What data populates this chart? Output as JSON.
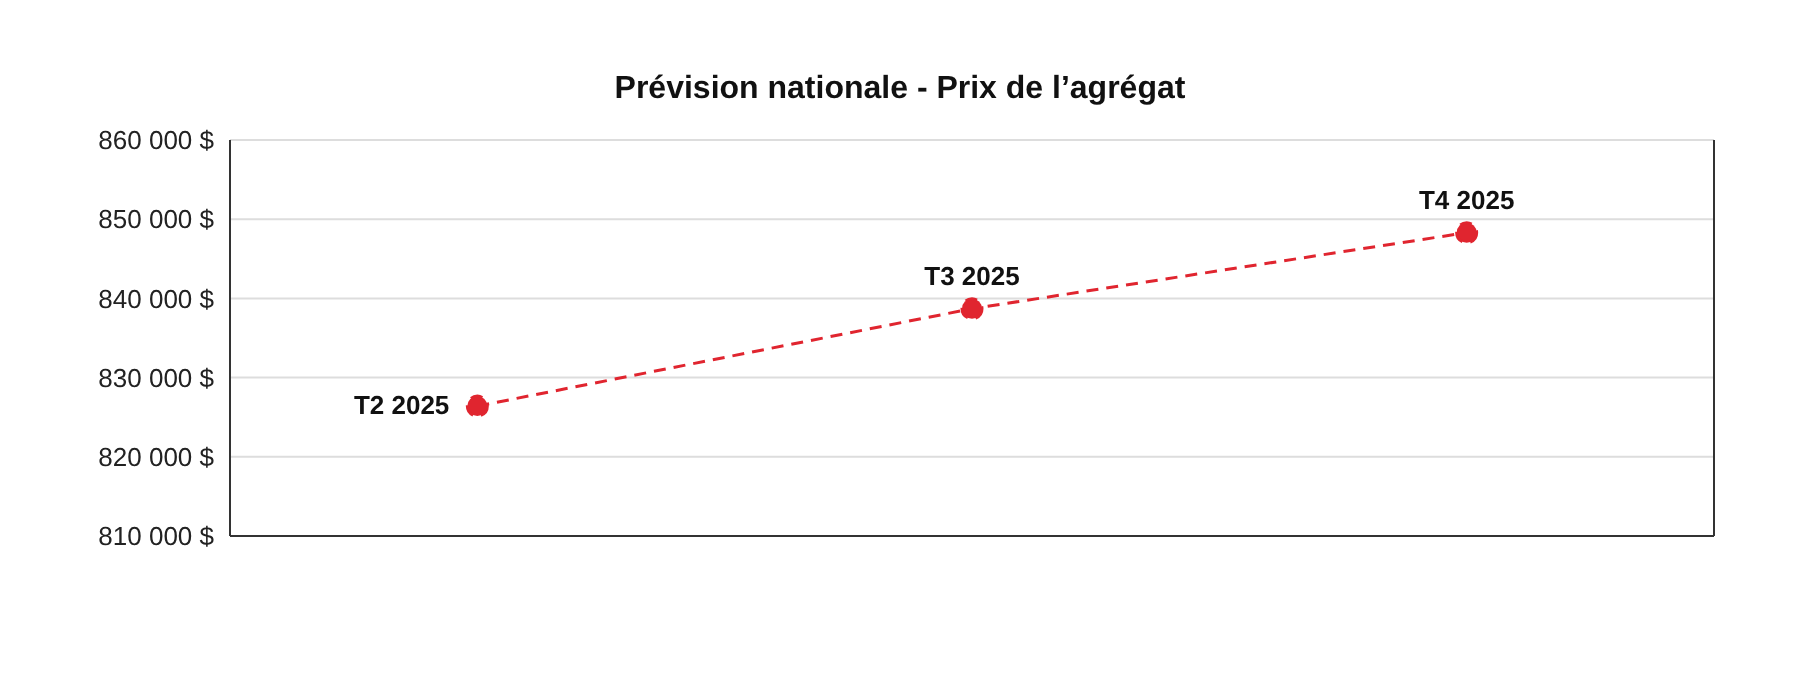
{
  "chart_data": {
    "type": "line",
    "title": "Prévision nationale - Prix de l’agrégat",
    "categories": [
      "T2 2025",
      "T3 2025",
      "T4 2025"
    ],
    "series": [
      {
        "color": "#e0252f",
        "values": [
          826400,
          838700,
          848300
        ]
      }
    ],
    "ylim": [
      810000,
      860000
    ],
    "yticks": [
      {
        "value": 810000,
        "label": "810 000 $"
      },
      {
        "value": 820000,
        "label": "820 000 $"
      },
      {
        "value": 830000,
        "label": "830 000 $"
      },
      {
        "value": 840000,
        "label": "840 000 $"
      },
      {
        "value": 850000,
        "label": "850 000 $"
      },
      {
        "value": 860000,
        "label": "860 000 $"
      }
    ],
    "grid": "y",
    "marker": "circle",
    "line_style": "dashed",
    "tick_labels": "y"
  }
}
